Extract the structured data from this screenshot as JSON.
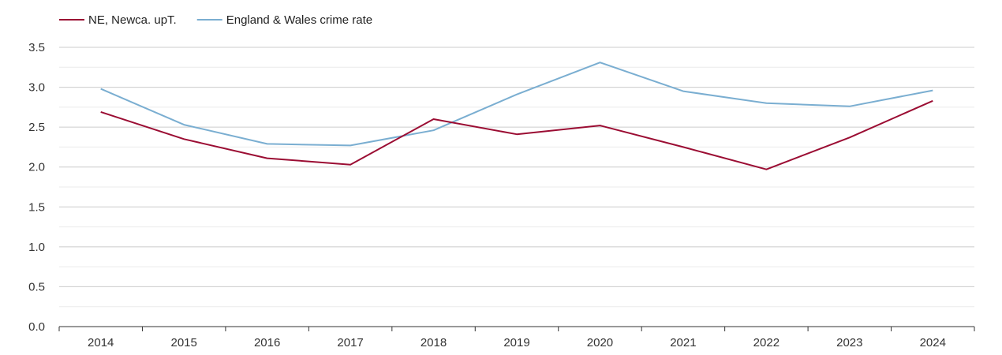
{
  "chart_data": {
    "type": "line",
    "title": "",
    "xlabel": "",
    "ylabel": "",
    "x": [
      "2014",
      "2015",
      "2016",
      "2017",
      "2018",
      "2019",
      "2020",
      "2021",
      "2022",
      "2023",
      "2024"
    ],
    "ylim": [
      0,
      3.5
    ],
    "yticks": [
      "0.0",
      "0.5",
      "1.0",
      "1.5",
      "2.0",
      "2.5",
      "3.0",
      "3.5"
    ],
    "grid": true,
    "legend_position": "top-left",
    "series": [
      {
        "name": "NE, Newca. upT.",
        "color": "#9b0d33",
        "values": [
          2.69,
          2.35,
          2.11,
          2.03,
          2.6,
          2.41,
          2.52,
          2.25,
          1.97,
          2.37,
          2.83
        ]
      },
      {
        "name": "England & Wales crime rate",
        "color": "#7aaed1",
        "values": [
          2.98,
          2.53,
          2.29,
          2.27,
          2.46,
          2.91,
          3.31,
          2.95,
          2.8,
          2.76,
          2.96
        ]
      }
    ]
  }
}
